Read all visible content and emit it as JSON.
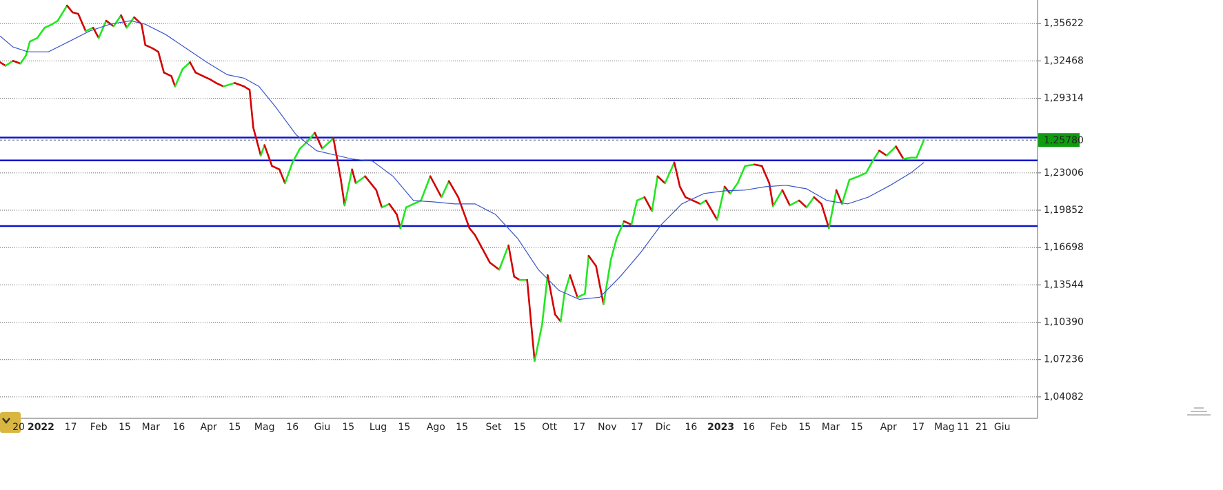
{
  "chart_data": {
    "type": "line",
    "grid": true,
    "xlim": [
      -22,
      535
    ],
    "ylim": [
      1.0227,
      1.3761
    ],
    "yticks": [
      {
        "value": 1.35622,
        "label": "1,35622"
      },
      {
        "value": 1.32468,
        "label": "1,32468"
      },
      {
        "value": 1.29314,
        "label": "1,29314"
      },
      {
        "value": 1.23006,
        "label": "1,23006"
      },
      {
        "value": 1.19852,
        "label": "1,19852"
      },
      {
        "value": 1.16698,
        "label": "1,16698"
      },
      {
        "value": 1.13544,
        "label": "1,13544"
      },
      {
        "value": 1.1039,
        "label": "1,10390"
      },
      {
        "value": 1.07236,
        "label": "1,07236"
      },
      {
        "value": 1.04082,
        "label": "1,04082"
      }
    ],
    "xticks": [
      {
        "value": -12,
        "label": "20"
      },
      {
        "value": 0,
        "label": "2022",
        "bold": true
      },
      {
        "value": 16,
        "label": "17"
      },
      {
        "value": 31,
        "label": "Feb"
      },
      {
        "value": 45,
        "label": "15"
      },
      {
        "value": 59,
        "label": "Mar"
      },
      {
        "value": 74,
        "label": "16"
      },
      {
        "value": 90,
        "label": "Apr"
      },
      {
        "value": 104,
        "label": "15"
      },
      {
        "value": 120,
        "label": "Mag"
      },
      {
        "value": 135,
        "label": "16"
      },
      {
        "value": 151,
        "label": "Giu"
      },
      {
        "value": 165,
        "label": "15"
      },
      {
        "value": 181,
        "label": "Lug"
      },
      {
        "value": 195,
        "label": "15"
      },
      {
        "value": 212,
        "label": "Ago"
      },
      {
        "value": 226,
        "label": "15"
      },
      {
        "value": 243,
        "label": "Set"
      },
      {
        "value": 257,
        "label": "15"
      },
      {
        "value": 273,
        "label": "Ott"
      },
      {
        "value": 289,
        "label": "17"
      },
      {
        "value": 304,
        "label": "Nov"
      },
      {
        "value": 320,
        "label": "17"
      },
      {
        "value": 334,
        "label": "Dic"
      },
      {
        "value": 349,
        "label": "16"
      },
      {
        "value": 365,
        "label": "2023",
        "bold": true
      },
      {
        "value": 380,
        "label": "16"
      },
      {
        "value": 396,
        "label": "Feb"
      },
      {
        "value": 410,
        "label": "15"
      },
      {
        "value": 424,
        "label": "Mar"
      },
      {
        "value": 438,
        "label": "15"
      },
      {
        "value": 455,
        "label": "Apr"
      },
      {
        "value": 471,
        "label": "17"
      },
      {
        "value": 485,
        "label": "Mag"
      },
      {
        "value": 495,
        "label": "11"
      },
      {
        "value": 505,
        "label": "21"
      },
      {
        "value": 516,
        "label": "Giu"
      }
    ],
    "series": [
      {
        "up_color": "#1fe81f",
        "down_color": "#d40000",
        "x": [
          -22,
          -19,
          -15,
          -11,
          -8,
          -6,
          -2,
          2,
          6,
          9,
          14,
          17,
          20,
          24,
          28,
          31,
          35,
          39,
          43,
          46,
          50,
          54,
          56,
          60,
          63,
          66,
          70,
          72,
          76,
          80,
          83,
          87,
          91,
          94,
          98,
          104,
          109,
          112,
          114,
          118,
          120,
          124,
          128,
          131,
          135,
          139,
          143,
          147,
          151,
          155,
          157,
          161,
          163,
          167,
          169,
          174,
          180,
          183,
          187,
          191,
          193,
          196,
          200,
          204,
          209,
          215,
          219,
          224,
          230,
          233,
          237,
          241,
          246,
          251,
          254,
          257,
          261,
          265,
          269,
          272,
          276,
          279,
          281,
          284,
          288,
          292,
          294,
          298,
          302,
          306,
          309,
          313,
          317,
          320,
          324,
          328,
          331,
          335,
          340,
          343,
          346,
          350,
          354,
          357,
          363,
          367,
          370,
          374,
          378,
          383,
          387,
          391,
          393,
          398,
          402,
          407,
          411,
          415,
          419,
          423,
          427,
          430,
          434,
          439,
          443,
          446,
          450,
          454,
          459,
          463,
          467,
          470,
          474
        ],
        "values": [
          1.3235,
          1.3206,
          1.3247,
          1.3224,
          1.3294,
          1.341,
          1.344,
          1.3527,
          1.3556,
          1.3586,
          1.3714,
          1.3656,
          1.3644,
          1.3498,
          1.3527,
          1.344,
          1.3586,
          1.3539,
          1.3632,
          1.3527,
          1.3615,
          1.3556,
          1.3381,
          1.3352,
          1.3323,
          1.3148,
          1.3118,
          1.3031,
          1.3177,
          1.3235,
          1.3148,
          1.3118,
          1.3089,
          1.306,
          1.3031,
          1.306,
          1.3031,
          1.3002,
          1.2681,
          1.2447,
          1.2535,
          1.2359,
          1.233,
          1.2213,
          1.2388,
          1.2505,
          1.2564,
          1.264,
          1.2505,
          1.2564,
          1.2593,
          1.2242,
          1.2026,
          1.233,
          1.2213,
          1.2272,
          1.2155,
          1.2009,
          1.2038,
          1.195,
          1.1834,
          1.2009,
          1.2038,
          1.2067,
          1.2272,
          1.2095,
          1.2231,
          1.2095,
          1.1834,
          1.1775,
          1.1659,
          1.1542,
          1.1483,
          1.1688,
          1.1425,
          1.1396,
          1.1396,
          1.0712,
          1.1016,
          1.1436,
          1.1104,
          1.1045,
          1.1279,
          1.1436,
          1.125,
          1.1279,
          1.16,
          1.1513,
          1.1191,
          1.1571,
          1.1745,
          1.1892,
          1.1863,
          1.2067,
          1.2095,
          1.1979,
          1.2272,
          1.2213,
          1.2388,
          1.2184,
          1.2095,
          1.2067,
          1.2038,
          1.2067,
          1.1904,
          1.2184,
          1.2126,
          1.2213,
          1.2359,
          1.2371,
          1.2359,
          1.2213,
          1.202,
          1.2155,
          1.2026,
          1.2067,
          1.2009,
          1.2095,
          1.2038,
          1.1834,
          1.2155,
          1.2038,
          1.2242,
          1.2272,
          1.2301,
          1.2388,
          1.2488,
          1.2447,
          1.2524,
          1.2418,
          1.2429,
          1.2429,
          1.2578
        ]
      },
      {
        "color": "#3a55c8",
        "x": [
          -22,
          -15,
          -7,
          4,
          15,
          26,
          37,
          48,
          56,
          67,
          78,
          89,
          100,
          109,
          117,
          126,
          137,
          148,
          159,
          167,
          178,
          189,
          200,
          211,
          222,
          233,
          244,
          256,
          267,
          278,
          289,
          300,
          311,
          322,
          333,
          344,
          356,
          367,
          378,
          389,
          400,
          411,
          422,
          433,
          444,
          456,
          467,
          474
        ],
        "values": [
          1.3457,
          1.3364,
          1.3323,
          1.3323,
          1.341,
          1.3498,
          1.3556,
          1.3586,
          1.3556,
          1.3469,
          1.3352,
          1.3235,
          1.313,
          1.3101,
          1.3031,
          1.2856,
          1.2622,
          1.2488,
          1.2447,
          1.2418,
          1.24,
          1.2272,
          1.2067,
          1.2055,
          1.2038,
          1.2038,
          1.195,
          1.1745,
          1.1483,
          1.1308,
          1.1232,
          1.125,
          1.1425,
          1.1629,
          1.1863,
          1.2038,
          1.2126,
          1.2149,
          1.2155,
          1.2184,
          1.2196,
          1.2166,
          1.2067,
          1.2038,
          1.2095,
          1.2196,
          1.2301,
          1.2388
        ]
      }
    ],
    "horizontal_lines": {
      "color": "#0a14c8",
      "values": [
        1.2599,
        1.2406,
        1.1851
      ]
    },
    "last_price": {
      "value": 1.2578,
      "label": "1,25780",
      "color": "#0f9d0f"
    }
  }
}
